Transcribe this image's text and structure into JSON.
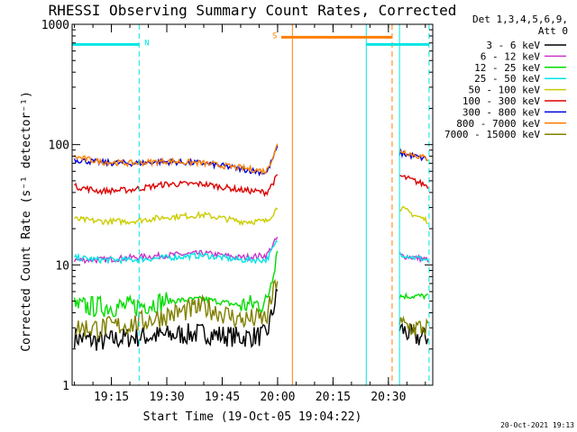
{
  "chart_data": {
    "type": "line",
    "title": "RHESSI Observing Summary Count Rates, Corrected",
    "xlabel": "Start Time (19-Oct-05 19:04:22)",
    "ylabel": "Corrected Count Rate (s⁻¹ detector⁻¹)",
    "yscale": "log",
    "ylim": [
      1,
      1000
    ],
    "y_ticks": [
      {
        "value": 1,
        "label": "1"
      },
      {
        "value": 10,
        "label": "10"
      },
      {
        "value": 100,
        "label": "100"
      },
      {
        "value": 1000,
        "label": "1000"
      }
    ],
    "xlim": [
      "19:04:22",
      "20:42:00"
    ],
    "x_ticks": [
      "19:15",
      "19:30",
      "19:45",
      "20:00",
      "20:15",
      "20:30"
    ],
    "legend_header": [
      "Det 1,3,4,5,6,9,",
      "Att 0"
    ],
    "legend_position": "right",
    "series": [
      {
        "name": "3 - 6 keV",
        "color": "#000000",
        "segments": [
          {
            "x": [
              "19:05",
              "19:12",
              "19:20",
              "19:30",
              "19:40",
              "19:50",
              "19:57",
              "20:00"
            ],
            "y": [
              2.5,
              2.3,
              2.5,
              2.6,
              2.7,
              2.5,
              2.6,
              6
            ]
          },
          {
            "x": [
              "20:33",
              "20:37",
              "20:41"
            ],
            "y": [
              3,
              2.5,
              2.5
            ]
          }
        ]
      },
      {
        "name": "6 - 12 keV",
        "color": "#cc33cc",
        "segments": [
          {
            "x": [
              "19:05",
              "19:12",
              "19:20",
              "19:30",
              "19:40",
              "19:50",
              "19:57",
              "20:00"
            ],
            "y": [
              11,
              11,
              11.5,
              12,
              12.5,
              11.5,
              12,
              17
            ]
          },
          {
            "x": [
              "20:33",
              "20:37",
              "20:41"
            ],
            "y": [
              12,
              11.5,
              11
            ]
          }
        ]
      },
      {
        "name": "12 - 25 keV",
        "color": "#00dd00",
        "segments": [
          {
            "x": [
              "19:05",
              "19:12",
              "19:20",
              "19:30",
              "19:40",
              "19:50",
              "19:57",
              "20:00"
            ],
            "y": [
              4.5,
              4.5,
              4.5,
              5,
              5.2,
              4.6,
              4.8,
              14
            ]
          },
          {
            "x": [
              "20:33",
              "20:37",
              "20:41"
            ],
            "y": [
              5.5,
              5.5,
              5.5
            ]
          }
        ]
      },
      {
        "name": "25 - 50 keV",
        "color": "#00e5e5",
        "segments": [
          {
            "x": [
              "19:05",
              "19:12",
              "19:20",
              "19:30",
              "19:40",
              "19:50",
              "19:57",
              "20:00"
            ],
            "y": [
              11.5,
              11,
              11,
              11.5,
              12,
              11,
              11,
              16
            ]
          },
          {
            "x": [
              "20:33",
              "20:37",
              "20:41"
            ],
            "y": [
              12.5,
              11.5,
              11
            ]
          }
        ]
      },
      {
        "name": "50 - 100 keV",
        "color": "#cccc00",
        "segments": [
          {
            "x": [
              "19:05",
              "19:12",
              "19:20",
              "19:30",
              "19:40",
              "19:50",
              "19:57",
              "20:00"
            ],
            "y": [
              24,
              23,
              23,
              25,
              26,
              23,
              23,
              30
            ]
          },
          {
            "x": [
              "20:33",
              "20:37",
              "20:41"
            ],
            "y": [
              30,
              26,
              23
            ]
          }
        ]
      },
      {
        "name": "100 - 300 keV",
        "color": "#dd0000",
        "segments": [
          {
            "x": [
              "19:05",
              "19:12",
              "19:20",
              "19:30",
              "19:40",
              "19:50",
              "19:57",
              "20:00"
            ],
            "y": [
              45,
              41,
              42,
              47,
              47,
              42,
              40,
              55
            ]
          },
          {
            "x": [
              "20:33",
              "20:37",
              "20:41"
            ],
            "y": [
              55,
              50,
              45
            ]
          }
        ]
      },
      {
        "name": "300 - 800 keV",
        "color": "#0000dd",
        "segments": [
          {
            "x": [
              "19:05",
              "19:12",
              "19:20",
              "19:30",
              "19:40",
              "19:50",
              "19:57",
              "20:00"
            ],
            "y": [
              75,
              71,
              70,
              72,
              70,
              63,
              58,
              95
            ]
          },
          {
            "x": [
              "20:33",
              "20:37",
              "20:41"
            ],
            "y": [
              85,
              80,
              75
            ]
          }
        ]
      },
      {
        "name": "800 - 7000 keV",
        "color": "#ff7f00",
        "segments": [
          {
            "x": [
              "19:05",
              "19:12",
              "19:20",
              "19:30",
              "19:40",
              "19:50",
              "19:57",
              "20:00"
            ],
            "y": [
              79,
              72,
              70,
              73,
              70,
              64,
              60,
              100
            ]
          },
          {
            "x": [
              "20:33",
              "20:37",
              "20:41"
            ],
            "y": [
              90,
              82,
              76
            ]
          }
        ]
      },
      {
        "name": "7000 - 15000 keV",
        "color": "#808000",
        "segments": [
          {
            "x": [
              "19:05",
              "19:12",
              "19:20",
              "19:30",
              "19:40",
              "19:50",
              "19:57",
              "20:00"
            ],
            "y": [
              3,
              3,
              3.2,
              3.8,
              4.5,
              3.5,
              3.6,
              8
            ]
          },
          {
            "x": [
              "20:33",
              "20:37",
              "20:41"
            ],
            "y": [
              3.2,
              3,
              3
            ]
          }
        ]
      }
    ],
    "intervals": [
      {
        "label": "N",
        "color": "#00e5e5",
        "x": [
          "19:04:22",
          "19:22:30"
        ],
        "y": 680
      },
      {
        "label": "S",
        "color": "#ff7f00",
        "x": [
          "20:01",
          "20:31"
        ],
        "y": 780
      },
      {
        "label": "",
        "color": "#00e5e5",
        "x": [
          "20:24",
          "20:41"
        ],
        "y": 680
      }
    ],
    "vlines": [
      {
        "x": "19:04:22",
        "color": "#00e5e5",
        "style": "dashed"
      },
      {
        "x": "19:22:30",
        "color": "#00e5e5",
        "style": "dashed"
      },
      {
        "x": "20:04",
        "color": "#ff7f00",
        "style": "solid"
      },
      {
        "x": "20:24",
        "color": "#00e5e5",
        "style": "solid"
      },
      {
        "x": "20:31",
        "color": "#ff7f00",
        "style": "dashed"
      },
      {
        "x": "20:33",
        "color": "#00e5e5",
        "style": "solid"
      },
      {
        "x": "20:41",
        "color": "#00e5e5",
        "style": "dashed"
      }
    ],
    "footer_date": "20-Oct-2021 19:13"
  }
}
